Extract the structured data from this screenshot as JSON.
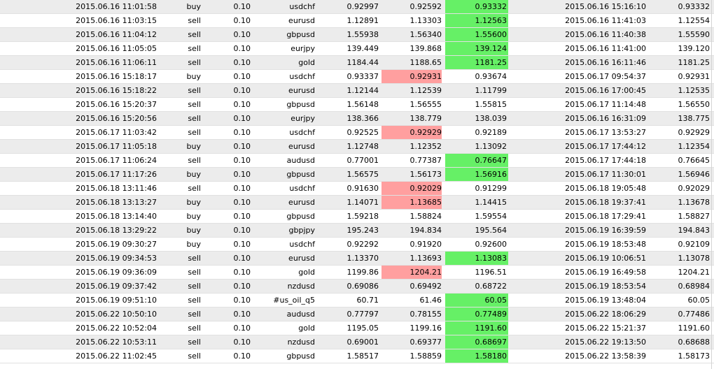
{
  "rows": [
    {
      "open_time": "2015.06.16 11:01:58",
      "type": "buy",
      "size": "0.10",
      "symbol": "usdchf",
      "price": "0.92997",
      "sl": "0.92592",
      "tp": "0.93332",
      "close_time": "2015.06.16 15:16:10",
      "close_price": "0.93332",
      "hit": "tp"
    },
    {
      "open_time": "2015.06.16 11:03:15",
      "type": "sell",
      "size": "0.10",
      "symbol": "eurusd",
      "price": "1.12891",
      "sl": "1.13303",
      "tp": "1.12563",
      "close_time": "2015.06.16 11:41:03",
      "close_price": "1.12554",
      "hit": "tp"
    },
    {
      "open_time": "2015.06.16 11:04:12",
      "type": "sell",
      "size": "0.10",
      "symbol": "gbpusd",
      "price": "1.55938",
      "sl": "1.56340",
      "tp": "1.55600",
      "close_time": "2015.06.16 11:40:38",
      "close_price": "1.55590",
      "hit": "tp"
    },
    {
      "open_time": "2015.06.16 11:05:05",
      "type": "sell",
      "size": "0.10",
      "symbol": "eurjpy",
      "price": "139.449",
      "sl": "139.868",
      "tp": "139.124",
      "close_time": "2015.06.16 11:41:00",
      "close_price": "139.120",
      "hit": "tp"
    },
    {
      "open_time": "2015.06.16 11:06:11",
      "type": "sell",
      "size": "0.10",
      "symbol": "gold",
      "price": "1184.44",
      "sl": "1188.65",
      "tp": "1181.25",
      "close_time": "2015.06.16 16:11:46",
      "close_price": "1181.25",
      "hit": "tp"
    },
    {
      "open_time": "2015.06.16 15:18:17",
      "type": "buy",
      "size": "0.10",
      "symbol": "usdchf",
      "price": "0.93337",
      "sl": "0.92931",
      "tp": "0.93674",
      "close_time": "2015.06.17 09:54:37",
      "close_price": "0.92931",
      "hit": "sl"
    },
    {
      "open_time": "2015.06.16 15:18:22",
      "type": "sell",
      "size": "0.10",
      "symbol": "eurusd",
      "price": "1.12144",
      "sl": "1.12539",
      "tp": "1.11799",
      "close_time": "2015.06.16 17:00:45",
      "close_price": "1.12535",
      "hit": ""
    },
    {
      "open_time": "2015.06.16 15:20:37",
      "type": "sell",
      "size": "0.10",
      "symbol": "gbpusd",
      "price": "1.56148",
      "sl": "1.56555",
      "tp": "1.55815",
      "close_time": "2015.06.17 11:14:48",
      "close_price": "1.56550",
      "hit": ""
    },
    {
      "open_time": "2015.06.16 15:20:56",
      "type": "sell",
      "size": "0.10",
      "symbol": "eurjpy",
      "price": "138.366",
      "sl": "138.779",
      "tp": "138.039",
      "close_time": "2015.06.16 16:31:09",
      "close_price": "138.775",
      "hit": ""
    },
    {
      "open_time": "2015.06.17 11:03:42",
      "type": "sell",
      "size": "0.10",
      "symbol": "usdchf",
      "price": "0.92525",
      "sl": "0.92929",
      "tp": "0.92189",
      "close_time": "2015.06.17 13:53:27",
      "close_price": "0.92929",
      "hit": "sl"
    },
    {
      "open_time": "2015.06.17 11:05:18",
      "type": "buy",
      "size": "0.10",
      "symbol": "eurusd",
      "price": "1.12748",
      "sl": "1.12352",
      "tp": "1.13092",
      "close_time": "2015.06.17 17:44:12",
      "close_price": "1.12354",
      "hit": ""
    },
    {
      "open_time": "2015.06.17 11:06:24",
      "type": "sell",
      "size": "0.10",
      "symbol": "audusd",
      "price": "0.77001",
      "sl": "0.77387",
      "tp": "0.76647",
      "close_time": "2015.06.17 17:44:18",
      "close_price": "0.76645",
      "hit": "tp"
    },
    {
      "open_time": "2015.06.17 11:17:26",
      "type": "buy",
      "size": "0.10",
      "symbol": "gbpusd",
      "price": "1.56575",
      "sl": "1.56173",
      "tp": "1.56916",
      "close_time": "2015.06.17 11:30:01",
      "close_price": "1.56946",
      "hit": "tp"
    },
    {
      "open_time": "2015.06.18 13:11:46",
      "type": "sell",
      "size": "0.10",
      "symbol": "usdchf",
      "price": "0.91630",
      "sl": "0.92029",
      "tp": "0.91299",
      "close_time": "2015.06.18 19:05:48",
      "close_price": "0.92029",
      "hit": "sl"
    },
    {
      "open_time": "2015.06.18 13:13:27",
      "type": "buy",
      "size": "0.10",
      "symbol": "eurusd",
      "price": "1.14071",
      "sl": "1.13685",
      "tp": "1.14415",
      "close_time": "2015.06.18 19:37:41",
      "close_price": "1.13678",
      "hit": "sl"
    },
    {
      "open_time": "2015.06.18 13:14:40",
      "type": "buy",
      "size": "0.10",
      "symbol": "gbpusd",
      "price": "1.59218",
      "sl": "1.58824",
      "tp": "1.59554",
      "close_time": "2015.06.18 17:29:41",
      "close_price": "1.58827",
      "hit": ""
    },
    {
      "open_time": "2015.06.18 13:29:22",
      "type": "buy",
      "size": "0.10",
      "symbol": "gbpjpy",
      "price": "195.243",
      "sl": "194.834",
      "tp": "195.564",
      "close_time": "2015.06.19 16:39:59",
      "close_price": "194.843",
      "hit": ""
    },
    {
      "open_time": "2015.06.19 09:30:27",
      "type": "buy",
      "size": "0.10",
      "symbol": "usdchf",
      "price": "0.92292",
      "sl": "0.91920",
      "tp": "0.92600",
      "close_time": "2015.06.19 18:53:48",
      "close_price": "0.92109",
      "hit": ""
    },
    {
      "open_time": "2015.06.19 09:34:53",
      "type": "sell",
      "size": "0.10",
      "symbol": "eurusd",
      "price": "1.13370",
      "sl": "1.13693",
      "tp": "1.13083",
      "close_time": "2015.06.19 10:06:51",
      "close_price": "1.13078",
      "hit": "tp"
    },
    {
      "open_time": "2015.06.19 09:36:09",
      "type": "sell",
      "size": "0.10",
      "symbol": "gold",
      "price": "1199.86",
      "sl": "1204.21",
      "tp": "1196.51",
      "close_time": "2015.06.19 16:49:58",
      "close_price": "1204.21",
      "hit": "sl"
    },
    {
      "open_time": "2015.06.19 09:37:42",
      "type": "sell",
      "size": "0.10",
      "symbol": "nzdusd",
      "price": "0.69086",
      "sl": "0.69492",
      "tp": "0.68722",
      "close_time": "2015.06.19 18:53:54",
      "close_price": "0.68984",
      "hit": ""
    },
    {
      "open_time": "2015.06.19 09:51:10",
      "type": "sell",
      "size": "0.10",
      "symbol": "#us_oil_q5",
      "price": "60.71",
      "sl": "61.46",
      "tp": "60.05",
      "close_time": "2015.06.19 13:48:04",
      "close_price": "60.05",
      "hit": "tp"
    },
    {
      "open_time": "2015.06.22 10:50:10",
      "type": "sell",
      "size": "0.10",
      "symbol": "audusd",
      "price": "0.77797",
      "sl": "0.78155",
      "tp": "0.77489",
      "close_time": "2015.06.22 18:06:29",
      "close_price": "0.77486",
      "hit": "tp"
    },
    {
      "open_time": "2015.06.22 10:52:04",
      "type": "sell",
      "size": "0.10",
      "symbol": "gold",
      "price": "1195.05",
      "sl": "1199.16",
      "tp": "1191.60",
      "close_time": "2015.06.22 15:21:37",
      "close_price": "1191.60",
      "hit": "tp"
    },
    {
      "open_time": "2015.06.22 10:53:11",
      "type": "sell",
      "size": "0.10",
      "symbol": "nzdusd",
      "price": "0.69001",
      "sl": "0.69377",
      "tp": "0.68697",
      "close_time": "2015.06.22 19:13:50",
      "close_price": "0.68688",
      "hit": "tp"
    },
    {
      "open_time": "2015.06.22 11:02:45",
      "type": "sell",
      "size": "0.10",
      "symbol": "gbpusd",
      "price": "1.58517",
      "sl": "1.58859",
      "tp": "1.58180",
      "close_time": "2015.06.22 13:58:39",
      "close_price": "1.58173",
      "hit": "tp"
    }
  ],
  "colors": {
    "stop_loss_hit": "#ff9f9f",
    "take_profit_hit": "#66f066",
    "alt_row": "#ececec"
  }
}
